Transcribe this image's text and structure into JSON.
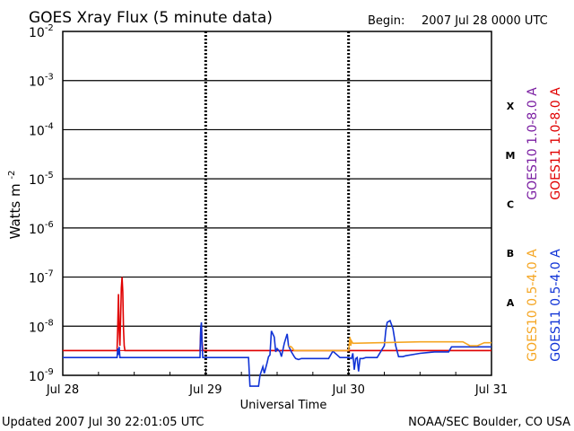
{
  "header": {
    "title": "GOES Xray Flux (5 minute data)",
    "begin_label": "Begin:",
    "begin_value": "2007 Jul 28 0000 UTC"
  },
  "footer": {
    "updated": "Updated 2007 Jul 30 22:01:05 UTC",
    "credit": "NOAA/SEC Boulder, CO USA"
  },
  "colors": {
    "goes10_long": "#7b1fa2",
    "goes11_long": "#e00000",
    "goes10_short": "#f5a623",
    "goes11_short": "#1033d6",
    "flare_threshold": "#e00000"
  },
  "chart_data": {
    "type": "line",
    "title": "GOES Xray Flux (5 minute data)",
    "xlabel": "Universal Time",
    "ylabel": "Watts m⁻²",
    "y_scale": "log",
    "ylim": [
      1e-09,
      0.01
    ],
    "xlim_days": [
      0,
      3
    ],
    "x_tick_labels": [
      "Jul 28",
      "Jul 29",
      "Jul 30",
      "Jul 31"
    ],
    "y_ticks": [
      {
        "base": "10",
        "exp": "-2"
      },
      {
        "base": "10",
        "exp": "-3"
      },
      {
        "base": "10",
        "exp": "-4"
      },
      {
        "base": "10",
        "exp": "-5"
      },
      {
        "base": "10",
        "exp": "-6"
      },
      {
        "base": "10",
        "exp": "-7"
      },
      {
        "base": "10",
        "exp": "-8"
      },
      {
        "base": "10",
        "exp": "-9"
      }
    ],
    "flare_classes": [
      "X",
      "M",
      "C",
      "B",
      "A"
    ],
    "grid": true,
    "legend_right": [
      "GOES10 1.0-8.0 A",
      "GOES11 1.0-8.0 A",
      "GOES10 0.5-4.0 A",
      "GOES11 0.5-4.0 A"
    ],
    "series": [
      {
        "name": "GOES11 1.0-8.0 A",
        "color": "#e00000",
        "x": [
          0,
          0.38,
          0.385,
          0.39,
          0.395,
          0.4,
          0.405,
          0.41,
          0.415,
          0.42,
          0.425,
          0.43,
          0.435,
          0.44,
          0.96,
          0.965,
          0.97,
          0.975,
          0.98,
          3
        ],
        "y": [
          3.2e-09,
          3.2e-09,
          1e-08,
          4.5e-08,
          8e-09,
          4e-09,
          1.5e-08,
          6e-08,
          1e-07,
          5e-08,
          9e-09,
          4e-09,
          3.2e-09,
          3.2e-09,
          3.2e-09,
          8e-09,
          1.1e-08,
          5e-09,
          3.2e-09,
          3.2e-09
        ]
      },
      {
        "name": "GOES11 0.5-4.0 A",
        "color": "#1033d6",
        "x": [
          0,
          0.38,
          0.385,
          0.39,
          0.395,
          0.4,
          0.44,
          0.96,
          0.965,
          0.97,
          0.975,
          0.98,
          1.3,
          1.31,
          1.37,
          1.38,
          1.4,
          1.41,
          1.43,
          1.44,
          1.45,
          1.46,
          1.48,
          1.49,
          1.5,
          1.52,
          1.53,
          1.55,
          1.57,
          1.58,
          1.6,
          1.62,
          1.63,
          1.65,
          1.67,
          1.75,
          1.86,
          1.89,
          1.92,
          1.94,
          2.0,
          2.02,
          2.03,
          2.04,
          2.05,
          2.06,
          2.07,
          2.08,
          2.1,
          2.12,
          2.2,
          2.25,
          2.26,
          2.27,
          2.29,
          2.31,
          2.33,
          2.35,
          2.38,
          2.4,
          2.5,
          2.55,
          2.6,
          2.7,
          2.72,
          2.9,
          2.95,
          3.0
        ],
        "y": [
          2.3e-09,
          2.3e-09,
          3.5e-09,
          2.6e-09,
          3.8e-09,
          2.3e-09,
          2.3e-09,
          2.3e-09,
          9e-09,
          1.2e-08,
          4e-09,
          2.3e-09,
          2.3e-09,
          6e-10,
          6e-10,
          1e-09,
          1.5e-09,
          1.1e-09,
          1.8e-09,
          2.4e-09,
          2.6e-09,
          8e-09,
          6e-09,
          3e-09,
          3.5e-09,
          3e-09,
          2.4e-09,
          4.5e-09,
          7e-09,
          4e-09,
          3e-09,
          2.4e-09,
          2.2e-09,
          2.1e-09,
          2.2e-09,
          2.2e-09,
          2.2e-09,
          3.1e-09,
          2.6e-09,
          2.3e-09,
          2.3e-09,
          2.2e-09,
          2.8e-09,
          1.3e-09,
          2.2e-09,
          2.3e-09,
          1.2e-09,
          2.2e-09,
          2.2e-09,
          2.3e-09,
          2.3e-09,
          4e-09,
          8e-09,
          1.2e-08,
          1.3e-08,
          9e-09,
          4e-09,
          2.4e-09,
          2.4e-09,
          2.5e-09,
          2.8e-09,
          2.9e-09,
          3e-09,
          3e-09,
          3.8e-09,
          3.8e-09,
          3.8e-09,
          3.8e-09
        ]
      },
      {
        "name": "GOES10 0.5-4.0 A",
        "color": "#f5a623",
        "x": [
          1.58,
          1.6,
          1.62,
          1.63,
          2.0,
          2.005,
          2.01,
          2.015,
          2.02,
          2.03,
          2.5,
          2.7,
          2.8,
          2.85,
          2.9,
          2.95,
          3.0
        ],
        "y": [
          4e-09,
          3.8e-09,
          3.2e-09,
          3.2e-09,
          3.2e-09,
          4.5e-09,
          6e-09,
          4e-09,
          5e-09,
          4.5e-09,
          4.8e-09,
          4.8e-09,
          4.8e-09,
          4e-09,
          4e-09,
          4.6e-09,
          4.6e-09
        ]
      }
    ]
  }
}
